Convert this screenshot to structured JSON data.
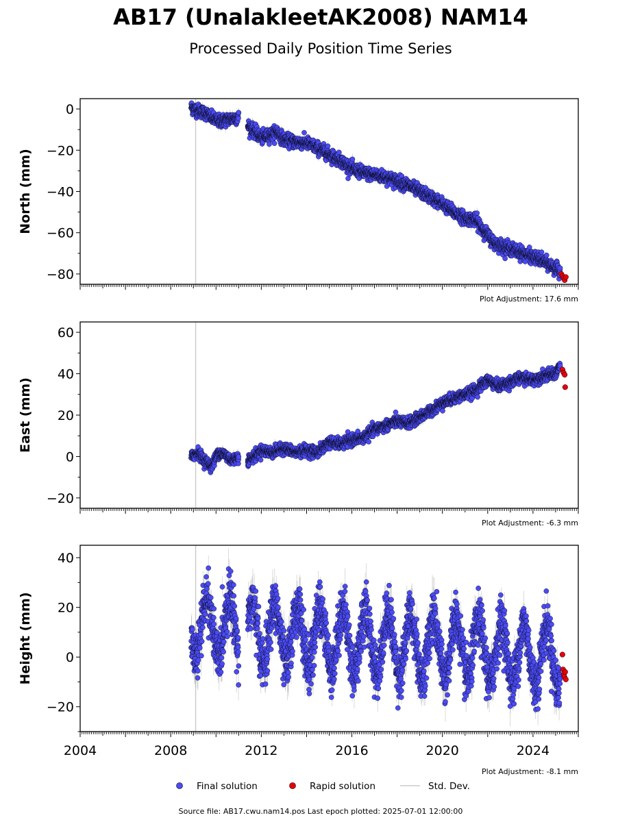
{
  "header": {
    "title": "AB17 (UnalakleetAK2008) NAM14",
    "subtitle": "Processed Daily Position Time Series"
  },
  "legend": {
    "final": "Final solution",
    "rapid": "Rapid solution",
    "std": "Std. Dev."
  },
  "footer": {
    "source": "Source file: AB17.cwu.nam14.pos  Last epoch plotted: 2025-07-01 12:00:00"
  },
  "colors": {
    "final": "#4b4bf5",
    "rapid": "#e8000b",
    "stddev": "#b0b0b0",
    "edge": "#000000",
    "eventline": "#cccccc"
  },
  "chart_data": [
    {
      "type": "scatter",
      "ylabel": "North (mm)",
      "adjustment": "Plot Adjustment: 17.6 mm",
      "xlim": [
        2004,
        2026
      ],
      "ylim": [
        -85,
        5
      ],
      "yticks": [
        0,
        -20,
        -40,
        -60,
        -80
      ],
      "xticks": [
        2004,
        2008,
        2012,
        2016,
        2020,
        2024
      ],
      "event_line_x": 2009.1,
      "final_segments": [
        {
          "x": [
            2008.9,
            2009.0,
            2009.3,
            2009.6,
            2009.9,
            2010.2,
            2010.5,
            2010.8,
            2011.0
          ],
          "y": [
            1.0,
            0.0,
            -1.0,
            -2.5,
            -5.0,
            -6.0,
            -5.0,
            -4.5,
            -4.0
          ]
        },
        {
          "x": [
            2011.4,
            2011.7,
            2012.0,
            2012.3,
            2012.7,
            2013.0,
            2013.5,
            2014.0,
            2014.5,
            2015.0,
            2015.5,
            2016.0,
            2016.5,
            2017.0,
            2017.5,
            2018.0,
            2018.5,
            2019.0,
            2019.5,
            2020.0,
            2020.5,
            2021.0,
            2021.5,
            2021.9,
            2022.3,
            2022.8,
            2023.3,
            2023.8,
            2024.3,
            2024.8,
            2025.2
          ],
          "y": [
            -8.0,
            -11.0,
            -14.0,
            -13.0,
            -11.0,
            -15.0,
            -16.0,
            -16.5,
            -19.0,
            -22.0,
            -25.0,
            -29.0,
            -31.0,
            -32.0,
            -33.0,
            -35.0,
            -37.0,
            -40.0,
            -43.0,
            -46.0,
            -50.0,
            -53.0,
            -54.0,
            -60.0,
            -65.0,
            -67.0,
            -69.0,
            -71.0,
            -73.0,
            -76.0,
            -79.0
          ]
        }
      ],
      "rapid": {
        "x": [
          2025.25,
          2025.3,
          2025.35,
          2025.4,
          2025.45
        ],
        "y": [
          -80.0,
          -81.0,
          -82.0,
          -83.0,
          -81.5
        ]
      },
      "noise_mm": 1.5,
      "stddev_mm": 2.0
    },
    {
      "type": "scatter",
      "ylabel": "East (mm)",
      "adjustment": "Plot Adjustment: -6.3 mm",
      "xlim": [
        2004,
        2026
      ],
      "ylim": [
        -25,
        65
      ],
      "yticks": [
        60,
        40,
        20,
        0,
        -20
      ],
      "xticks": [
        2004,
        2008,
        2012,
        2016,
        2020,
        2024
      ],
      "event_line_x": 2009.1,
      "final_segments": [
        {
          "x": [
            2008.9,
            2009.2,
            2009.5,
            2009.8,
            2010.1,
            2010.4,
            2010.7,
            2011.0
          ],
          "y": [
            0.0,
            2.0,
            -2.0,
            -5.0,
            2.0,
            1.0,
            -2.0,
            0.0
          ]
        },
        {
          "x": [
            2011.4,
            2011.7,
            2012.0,
            2012.5,
            2013.0,
            2013.5,
            2014.0,
            2014.5,
            2015.0,
            2015.5,
            2016.0,
            2016.5,
            2017.0,
            2017.5,
            2018.0,
            2018.5,
            2019.0,
            2019.5,
            2020.0,
            2020.5,
            2021.0,
            2021.5,
            2022.0,
            2022.5,
            2023.0,
            2023.5,
            2024.0,
            2024.5,
            2025.0,
            2025.2
          ],
          "y": [
            -2.0,
            0.0,
            3.0,
            2.0,
            4.0,
            2.0,
            3.0,
            2.0,
            7.0,
            6.0,
            8.0,
            9.0,
            13.0,
            15.0,
            17.0,
            16.0,
            19.0,
            22.0,
            26.0,
            28.0,
            30.0,
            32.0,
            37.0,
            34.0,
            36.0,
            38.0,
            37.0,
            39.0,
            40.0,
            44.0
          ]
        }
      ],
      "rapid": {
        "x": [
          2025.3,
          2025.35,
          2025.4,
          2025.42
        ],
        "y": [
          42.0,
          40.5,
          39.5,
          33.5
        ]
      },
      "noise_mm": 1.3,
      "stddev_mm": 1.8
    },
    {
      "type": "scatter",
      "ylabel": "Height (mm)",
      "adjustment": "Plot Adjustment: -8.1 mm",
      "xlim": [
        2004,
        2026
      ],
      "ylim": [
        -30,
        45
      ],
      "yticks": [
        40,
        20,
        0,
        -20
      ],
      "xticks": [
        2004,
        2008,
        2012,
        2016,
        2020,
        2024
      ],
      "xtick_labels": [
        "2004",
        "2008",
        "2012",
        "2016",
        "2020",
        "2024"
      ],
      "event_line_x": 2009.1,
      "final_segments": [
        {
          "x": [
            2008.9,
            2011.0
          ],
          "y": [
            12.0,
            12.0
          ]
        },
        {
          "x": [
            2011.4,
            2025.2
          ],
          "y": [
            10.0,
            0.0
          ]
        }
      ],
      "seasonal_amplitude_mm": 12,
      "rapid": {
        "x": [
          2025.3,
          2025.33,
          2025.36,
          2025.39,
          2025.42,
          2025.45
        ],
        "y": [
          1.0,
          -5.0,
          -7.0,
          -8.0,
          -6.0,
          -9.0
        ]
      },
      "noise_mm": 5.0,
      "stddev_mm": 6.0
    }
  ]
}
